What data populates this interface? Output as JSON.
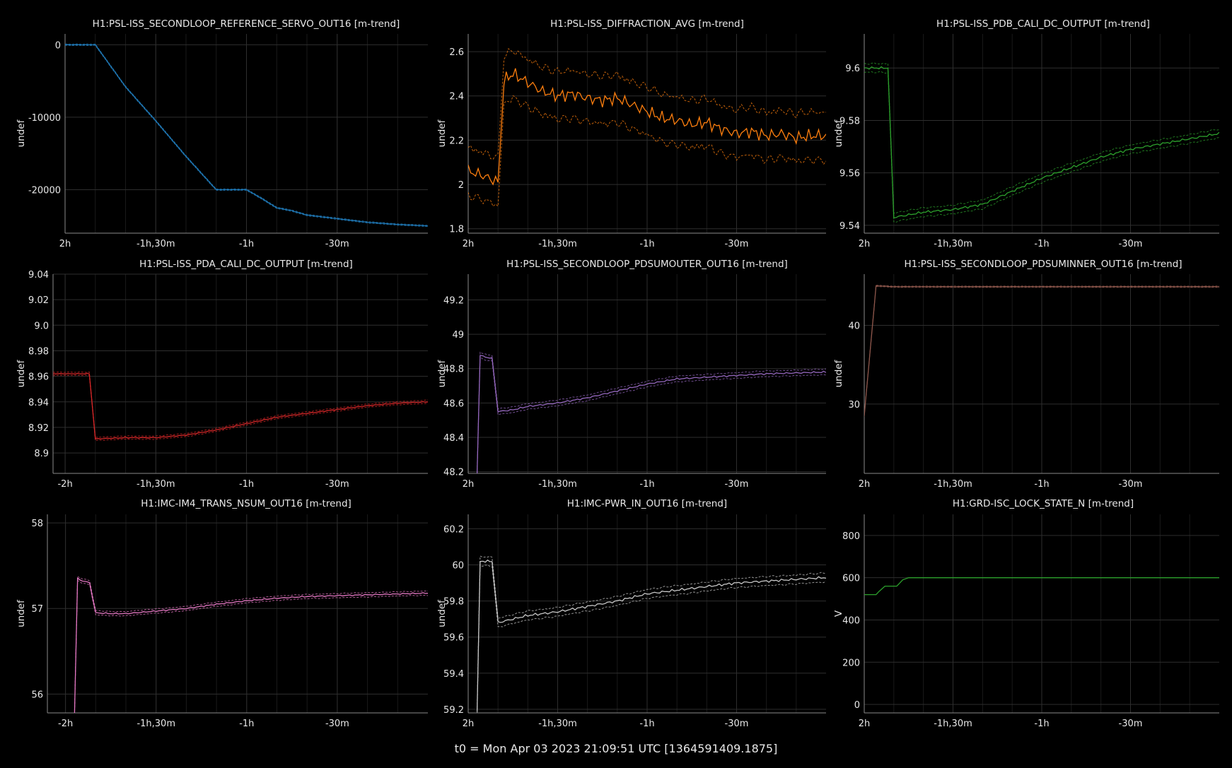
{
  "footer": "t0 = Mon Apr 03 2023 21:09:51 UTC [1364591409.1875]",
  "chart_data": [
    {
      "type": "line",
      "title": "H1:PSL-ISS_SECONDLOOP_REFERENCE_SERVO_OUT16 [m-trend]",
      "ylabel": "undef",
      "color": "#1f77b4",
      "xlim": [
        -120,
        0
      ],
      "ylim": [
        -26000,
        1500
      ],
      "xticks": [
        [
          -120,
          "2h"
        ],
        [
          -90,
          "-1h,30m"
        ],
        [
          -60,
          "-1h"
        ],
        [
          -30,
          "-30m"
        ]
      ],
      "yticks": [
        [
          0,
          "0"
        ],
        [
          -10000,
          "-10000"
        ],
        [
          -20000,
          "-20000"
        ]
      ],
      "x": [
        -120,
        -110,
        -100,
        -90,
        -80,
        -70,
        -60,
        -55,
        -50,
        -45,
        -40,
        -30,
        -20,
        -10,
        0
      ],
      "y": [
        0,
        0,
        -5800,
        -10500,
        -15400,
        -20000,
        -20000,
        -21200,
        -22500,
        -22900,
        -23500,
        -24000,
        -24500,
        -24800,
        -25000
      ],
      "band": 120
    },
    {
      "type": "line",
      "title": "H1:PSL-ISS_DIFFRACTION_AVG [m-trend]",
      "ylabel": "undef",
      "color": "#ff7f0e",
      "xlim": [
        -120,
        0
      ],
      "ylim": [
        1.78,
        2.68
      ],
      "xticks": [
        [
          -120,
          "2h"
        ],
        [
          -90,
          "-1h,30m"
        ],
        [
          -60,
          "-1h"
        ],
        [
          -30,
          "-30m"
        ]
      ],
      "yticks": [
        [
          1.8,
          "1.8"
        ],
        [
          2,
          "2"
        ],
        [
          2.2,
          "2.2"
        ],
        [
          2.4,
          "2.4"
        ],
        [
          2.6,
          "2.6"
        ]
      ],
      "x": [
        -120,
        -115,
        -110,
        -108,
        -105,
        -100,
        -95,
        -90,
        -85,
        -80,
        -75,
        -70,
        -65,
        -60,
        -55,
        -50,
        -45,
        -40,
        -35,
        -30,
        -25,
        -20,
        -15,
        -10,
        -5,
        0
      ],
      "y": [
        2.06,
        2.04,
        2.01,
        2.47,
        2.5,
        2.46,
        2.42,
        2.4,
        2.41,
        2.39,
        2.38,
        2.39,
        2.36,
        2.33,
        2.3,
        2.29,
        2.27,
        2.28,
        2.25,
        2.23,
        2.24,
        2.22,
        2.23,
        2.21,
        2.22,
        2.22
      ],
      "band": 0.13
    },
    {
      "type": "line",
      "title": "H1:PSL-ISS_PDB_CALI_DC_OUTPUT [m-trend]",
      "ylabel": "undef",
      "color": "#2ca02c",
      "xlim": [
        -120,
        0
      ],
      "ylim": [
        9.537,
        9.613
      ],
      "xticks": [
        [
          -120,
          "2h"
        ],
        [
          -90,
          "-1h,30m"
        ],
        [
          -60,
          "-1h"
        ],
        [
          -30,
          "-30m"
        ]
      ],
      "yticks": [
        [
          9.54,
          "9.54"
        ],
        [
          9.56,
          "9.56"
        ],
        [
          9.58,
          "9.58"
        ],
        [
          9.6,
          "9.6"
        ]
      ],
      "x": [
        -120,
        -115,
        -112,
        -110,
        -105,
        -100,
        -90,
        -80,
        -70,
        -60,
        -50,
        -40,
        -30,
        -20,
        -10,
        -5,
        0
      ],
      "y": [
        9.6,
        9.6,
        9.6,
        9.543,
        9.544,
        9.545,
        9.546,
        9.548,
        9.553,
        9.558,
        9.562,
        9.566,
        9.569,
        9.571,
        9.573,
        9.574,
        9.575
      ],
      "band": 0.002
    },
    {
      "type": "line",
      "title": "H1:PSL-ISS_PDA_CALI_DC_OUTPUT [m-trend]",
      "ylabel": "undef",
      "color": "#d62728",
      "xlim": [
        -124,
        0
      ],
      "ylim": [
        8.884,
        9.04
      ],
      "xticks": [
        [
          -120,
          "-2h"
        ],
        [
          -90,
          "-1h,30m"
        ],
        [
          -60,
          "-1h"
        ],
        [
          -30,
          "-30m"
        ]
      ],
      "yticks": [
        [
          8.9,
          "8.9"
        ],
        [
          8.92,
          "8.92"
        ],
        [
          8.94,
          "8.94"
        ],
        [
          8.96,
          "8.96"
        ],
        [
          8.98,
          "8.98"
        ],
        [
          9.0,
          "9.0"
        ],
        [
          9.02,
          "9.02"
        ],
        [
          9.04,
          "9.04"
        ]
      ],
      "x": [
        -124,
        -115,
        -112,
        -110,
        -100,
        -90,
        -80,
        -70,
        -60,
        -50,
        -40,
        -30,
        -20,
        -10,
        0
      ],
      "y": [
        8.962,
        8.962,
        8.962,
        8.911,
        8.912,
        8.912,
        8.914,
        8.918,
        8.923,
        8.928,
        8.931,
        8.934,
        8.937,
        8.939,
        8.94
      ],
      "band": 0.0015
    },
    {
      "type": "line",
      "title": "H1:PSL-ISS_SECONDLOOP_PDSUMOUTER_OUT16 [m-trend]",
      "ylabel": "undef",
      "color": "#9467bd",
      "xlim": [
        -120,
        0
      ],
      "ylim": [
        48.19,
        49.35
      ],
      "xticks": [
        [
          -120,
          "2h"
        ],
        [
          -90,
          "-1h,30m"
        ],
        [
          -60,
          "-1h"
        ],
        [
          -30,
          "-30m"
        ]
      ],
      "yticks": [
        [
          48.2,
          "48.2"
        ],
        [
          48.4,
          "48.4"
        ],
        [
          48.6,
          "48.6"
        ],
        [
          48.8,
          "48.8"
        ],
        [
          49,
          "49"
        ],
        [
          49.2,
          "49.2"
        ]
      ],
      "x": [
        -117,
        -116,
        -115,
        -112,
        -110,
        -105,
        -100,
        -90,
        -80,
        -70,
        -60,
        -50,
        -40,
        -30,
        -20,
        -10,
        0
      ],
      "y": [
        48.19,
        48.88,
        48.87,
        48.86,
        48.55,
        48.56,
        48.58,
        48.6,
        48.63,
        48.67,
        48.71,
        48.74,
        48.75,
        48.76,
        48.77,
        48.775,
        48.78
      ],
      "band": 0.02
    },
    {
      "type": "line",
      "title": "H1:PSL-ISS_SECONDLOOP_PDSUMINNER_OUT16 [m-trend]",
      "ylabel": "undef",
      "color": "#8c564b",
      "xlim": [
        -120,
        0
      ],
      "ylim": [
        21.2,
        46.5
      ],
      "xticks": [
        [
          -120,
          "2h"
        ],
        [
          -90,
          "-1h,30m"
        ],
        [
          -60,
          "-1h"
        ],
        [
          -30,
          "-30m"
        ]
      ],
      "yticks": [
        [
          30,
          "30"
        ],
        [
          40,
          "40"
        ]
      ],
      "x": [
        -120,
        -116,
        -115,
        -110,
        -100,
        -80,
        -60,
        -40,
        -20,
        0
      ],
      "y": [
        28.5,
        45.0,
        45.0,
        44.9,
        44.9,
        44.9,
        44.9,
        44.9,
        44.9,
        44.9
      ],
      "band": 0.1
    },
    {
      "type": "line",
      "title": "H1:IMC-IM4_TRANS_NSUM_OUT16 [m-trend]",
      "ylabel": "undef",
      "color": "#e377c2",
      "xlim": [
        -126,
        0
      ],
      "ylim": [
        55.78,
        58.1
      ],
      "xticks": [
        [
          -120,
          "-2h"
        ],
        [
          -90,
          "-1h,30m"
        ],
        [
          -60,
          "-1h"
        ],
        [
          -30,
          "-30m"
        ]
      ],
      "yticks": [
        [
          56,
          "56"
        ],
        [
          57,
          "57"
        ],
        [
          58,
          "58"
        ]
      ],
      "x": [
        -117,
        -116,
        -115,
        -112,
        -110,
        -105,
        -100,
        -90,
        -80,
        -70,
        -60,
        -50,
        -40,
        -30,
        -20,
        -10,
        0
      ],
      "y": [
        55.78,
        57.35,
        57.33,
        57.3,
        56.95,
        56.94,
        56.94,
        56.97,
        57.0,
        57.05,
        57.09,
        57.12,
        57.14,
        57.15,
        57.16,
        57.17,
        57.18
      ],
      "band": 0.03
    },
    {
      "type": "line",
      "title": "H1:IMC-PWR_IN_OUT16 [m-trend]",
      "ylabel": "undef",
      "color": "#c7c7c7",
      "xlim": [
        -120,
        0
      ],
      "ylim": [
        59.18,
        60.28
      ],
      "xticks": [
        [
          -120,
          "2h"
        ],
        [
          -90,
          "-1h,30m"
        ],
        [
          -60,
          "-1h"
        ],
        [
          -30,
          "-30m"
        ]
      ],
      "yticks": [
        [
          59.2,
          "59.2"
        ],
        [
          59.4,
          "59.4"
        ],
        [
          59.6,
          "59.6"
        ],
        [
          59.8,
          "59.8"
        ],
        [
          60,
          "60"
        ],
        [
          60.2,
          "60.2"
        ]
      ],
      "x": [
        -117,
        -116,
        -115,
        -112,
        -110,
        -105,
        -100,
        -90,
        -80,
        -70,
        -60,
        -50,
        -40,
        -30,
        -20,
        -10,
        0
      ],
      "y": [
        59.18,
        60.02,
        60.02,
        60.02,
        59.68,
        59.7,
        59.72,
        59.74,
        59.77,
        59.8,
        59.84,
        59.86,
        59.88,
        59.9,
        59.91,
        59.92,
        59.93
      ],
      "band": 0.03
    },
    {
      "type": "line",
      "title": "H1:GRD-ISC_LOCK_STATE_N [m-trend]",
      "ylabel": "V",
      "color": "#2ca02c",
      "xlim": [
        -120,
        0
      ],
      "ylim": [
        -40,
        900
      ],
      "xticks": [
        [
          -120,
          "2h"
        ],
        [
          -90,
          "-1h,30m"
        ],
        [
          -60,
          "-1h"
        ],
        [
          -30,
          "-30m"
        ]
      ],
      "yticks": [
        [
          0,
          "0"
        ],
        [
          200,
          "200"
        ],
        [
          400,
          "400"
        ],
        [
          600,
          "600"
        ],
        [
          800,
          "800"
        ]
      ],
      "x": [
        -120,
        -116,
        -115,
        -113,
        -109,
        -107,
        -105,
        -80,
        -40,
        0
      ],
      "y": [
        520,
        520,
        535,
        560,
        560,
        590,
        600,
        600,
        600,
        600
      ],
      "band": 0
    }
  ]
}
